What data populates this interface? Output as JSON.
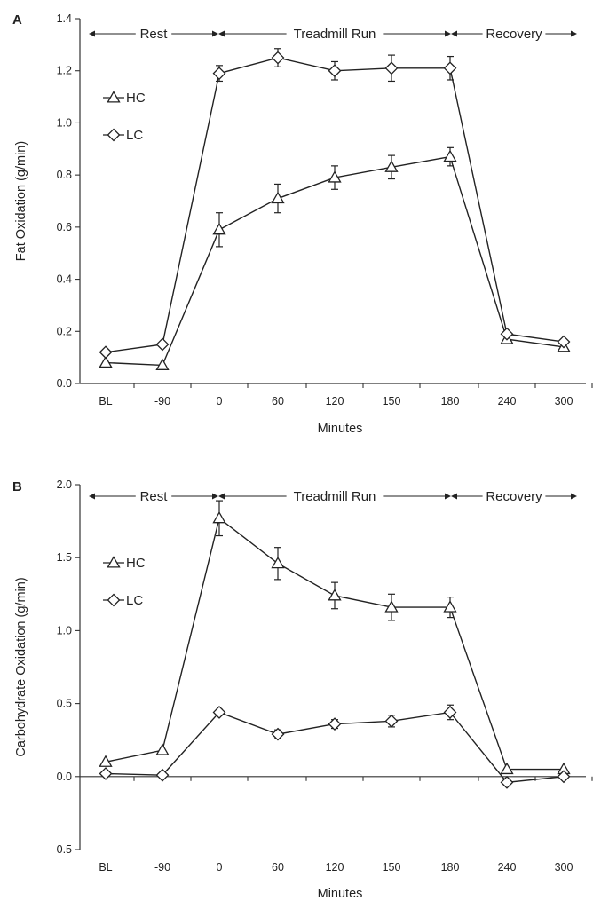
{
  "chart_data": [
    {
      "type": "line",
      "panel_label": "A",
      "xlabel": "Minutes",
      "ylabel": "Fat Oxidation (g/min)",
      "categories": [
        "BL",
        "-90",
        "0",
        "60",
        "120",
        "150",
        "180",
        "240",
        "300"
      ],
      "ylim": [
        0,
        1.4
      ],
      "yticks": [
        "0.0",
        "0.2",
        "0.4",
        "0.6",
        "0.8",
        "1.0",
        "1.2",
        "1.4"
      ],
      "phases": [
        {
          "label": "Rest",
          "from": 0,
          "to": 2
        },
        {
          "label": "Treadmill Run",
          "from": 2,
          "to": 6
        },
        {
          "label": "Recovery",
          "from": 6,
          "to": 8
        }
      ],
      "legend": {
        "position": "top-left"
      },
      "grid": false,
      "series": [
        {
          "name": "HC",
          "marker": "triangle",
          "values": [
            0.08,
            0.07,
            0.59,
            0.71,
            0.79,
            0.83,
            0.87,
            0.17,
            0.14
          ],
          "errors": [
            0,
            0,
            0.065,
            0.055,
            0.045,
            0.045,
            0.035,
            0,
            0
          ]
        },
        {
          "name": "LC",
          "marker": "diamond",
          "values": [
            0.12,
            0.15,
            1.19,
            1.25,
            1.2,
            1.21,
            1.21,
            0.19,
            0.16
          ],
          "errors": [
            0,
            0,
            0.03,
            0.035,
            0.035,
            0.05,
            0.045,
            0,
            0
          ]
        }
      ]
    },
    {
      "type": "line",
      "panel_label": "B",
      "xlabel": "Minutes",
      "ylabel": "Carbohydrate Oxidation (g/min)",
      "categories": [
        "BL",
        "-90",
        "0",
        "60",
        "120",
        "150",
        "180",
        "240",
        "300"
      ],
      "ylim": [
        -0.5,
        2.0
      ],
      "yticks": [
        "-0.5",
        "0.0",
        "0.5",
        "1.0",
        "1.5",
        "2.0"
      ],
      "phases": [
        {
          "label": "Rest",
          "from": 0,
          "to": 2
        },
        {
          "label": "Treadmill Run",
          "from": 2,
          "to": 6
        },
        {
          "label": "Recovery",
          "from": 6,
          "to": 8
        }
      ],
      "legend": {
        "position": "top-left"
      },
      "grid": false,
      "series": [
        {
          "name": "HC",
          "marker": "triangle",
          "values": [
            0.1,
            0.18,
            1.77,
            1.46,
            1.24,
            1.16,
            1.16,
            0.05,
            0.05
          ],
          "errors": [
            0,
            0,
            0.12,
            0.11,
            0.09,
            0.09,
            0.07,
            0,
            0
          ]
        },
        {
          "name": "LC",
          "marker": "diamond",
          "values": [
            0.02,
            0.01,
            0.44,
            0.29,
            0.36,
            0.38,
            0.44,
            -0.04,
            0.0
          ],
          "errors": [
            0,
            0,
            0.02,
            0.03,
            0.03,
            0.04,
            0.05,
            0,
            0
          ]
        }
      ]
    }
  ]
}
